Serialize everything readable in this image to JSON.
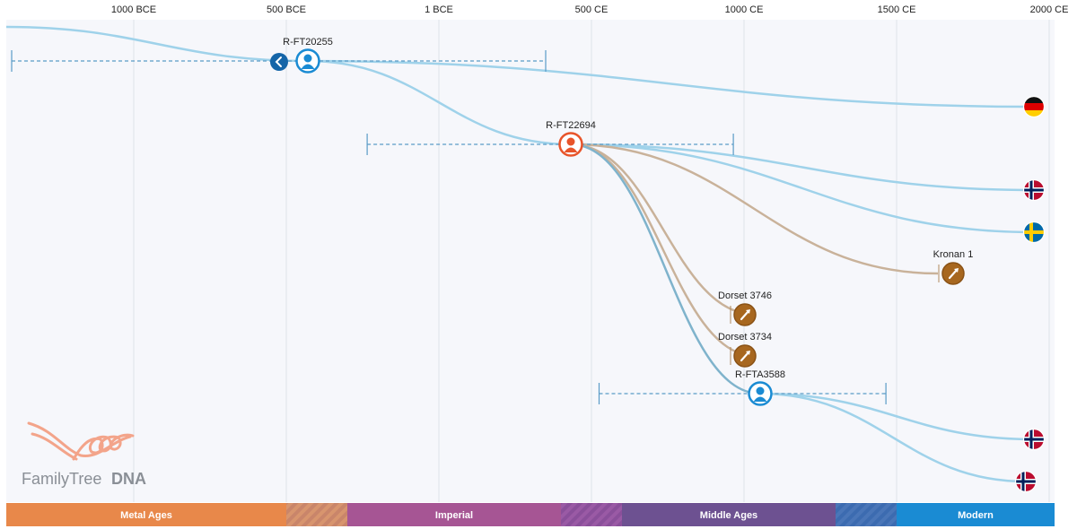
{
  "brand": {
    "logo_text": "FamilyTree",
    "logo_text_bold": "DNA"
  },
  "colors": {
    "branch_line": "#9fd2ea",
    "ancient_line": "#c9b29a",
    "person_blue": "#1a8bd3",
    "person_orange": "#e8542a",
    "ancient_node": "#a7671f",
    "back_button": "#1565a8",
    "metal_ages": "#e8884a",
    "imperial": "#a65594",
    "middle_ages": "#6d5191",
    "modern": "#1a8bd3"
  },
  "chart_data": {
    "type": "timeline-tree",
    "x_axis": {
      "unit": "year",
      "range": [
        -1400,
        2000
      ],
      "ticks": [
        {
          "value": -1000,
          "label": "1000 BCE"
        },
        {
          "value": -500,
          "label": "500 BCE"
        },
        {
          "value": 0,
          "label": "1 BCE"
        },
        {
          "value": 500,
          "label": "500 CE"
        },
        {
          "value": 1000,
          "label": "1000 CE"
        },
        {
          "value": 1500,
          "label": "1500 CE"
        },
        {
          "value": 2000,
          "label": "2000 CE"
        }
      ]
    },
    "eras": [
      {
        "label": "Metal Ages",
        "start": -1400,
        "end": -500,
        "color": "#e8884a"
      },
      {
        "label": "Imperial",
        "start": -300,
        "end": 400,
        "color": "#a65594"
      },
      {
        "label": "Middle Ages",
        "start": 600,
        "end": 1300,
        "color": "#6d5191"
      },
      {
        "label": "Modern",
        "start": 1500,
        "end": 2000,
        "color": "#1a8bd3"
      }
    ],
    "nodes": [
      {
        "id": "R-FT20255",
        "label": "R-FT20255",
        "year": -431,
        "ci": [
          -1400,
          350
        ],
        "kind": "person-blue",
        "has_back": true
      },
      {
        "id": "R-FT22694",
        "label": "R-FT22694",
        "year": 435,
        "ci": [
          -235,
          965
        ],
        "kind": "person-orange"
      },
      {
        "id": "R-FTA3588",
        "label": "R-FTA3588",
        "year": 1054,
        "ci": [
          525,
          1465
        ],
        "kind": "person-blue"
      },
      {
        "id": "Dorset 3746",
        "label": "Dorset 3746",
        "year": 1003,
        "kind": "ancient"
      },
      {
        "id": "Dorset 3734",
        "label": "Dorset 3734",
        "year": 1003,
        "kind": "ancient"
      },
      {
        "id": "Kronan 1",
        "label": "Kronan 1",
        "year": 1676,
        "kind": "ancient"
      }
    ],
    "leaves": [
      {
        "country": "Germany",
        "flag": "de-flag-icon"
      },
      {
        "country": "Norway",
        "flag": "no-flag-icon"
      },
      {
        "country": "Sweden",
        "flag": "se-flag-icon"
      },
      {
        "country": "Norway",
        "flag": "no-flag-icon"
      },
      {
        "country": "Norway",
        "flag": "no-flag-icon"
      }
    ]
  }
}
